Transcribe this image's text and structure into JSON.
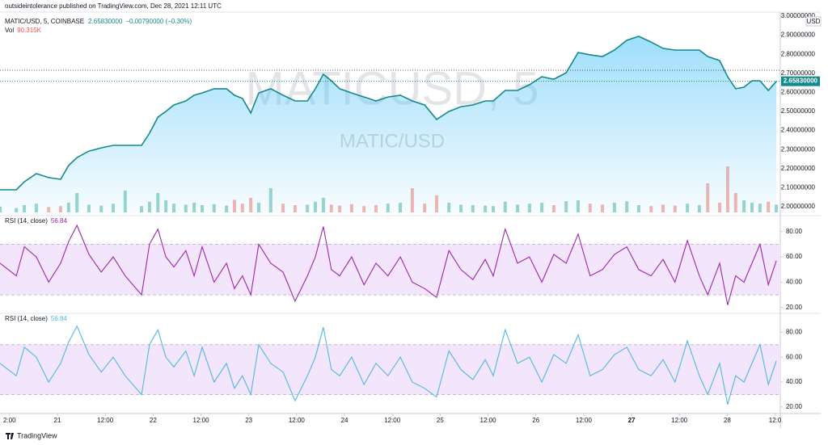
{
  "header": "outsideintolerance published on TradingView.com, Dec 28, 2021 12:11 UTC",
  "footer": "TradingView",
  "xaxis": {
    "xlim": [
      9.6,
      205.3
    ],
    "xticks": [
      {
        "value": 12,
        "label": "2:00"
      },
      {
        "value": 24,
        "label": "21"
      },
      {
        "value": 36,
        "label": "12:00"
      },
      {
        "value": 48,
        "label": "22"
      },
      {
        "value": 60,
        "label": "12:00"
      },
      {
        "value": 72,
        "label": "23"
      },
      {
        "value": 84,
        "label": "12:00"
      },
      {
        "value": 96,
        "label": "24"
      },
      {
        "value": 108,
        "label": "12:00"
      },
      {
        "value": 120,
        "label": "25"
      },
      {
        "value": 132,
        "label": "12:00"
      },
      {
        "value": 144,
        "label": "26"
      },
      {
        "value": 156,
        "label": "12:00"
      },
      {
        "value": 168,
        "label": "27",
        "bold": true
      },
      {
        "value": 180,
        "label": "12:00"
      },
      {
        "value": 192,
        "label": "28"
      },
      {
        "value": 204,
        "label": "12:0"
      }
    ]
  },
  "chart_data": [
    {
      "type": "area",
      "symbol": "MATIC/USD, 5, COINBASE",
      "change": "−0.00790000 (−0.30%)",
      "watermark": "MATICUSD, 5",
      "watermark_sub": "MATIC/USD",
      "currency": "USD",
      "last_price": {
        "value": 2.6583,
        "label": "2.65830000"
      },
      "color": "#13898c",
      "fill": "#4fc3f7",
      "ylim": [
        1.962,
        3.021
      ],
      "yticks": [
        {
          "value": 2,
          "label": "2.00000000"
        },
        {
          "value": 2.1,
          "label": "2.10000000"
        },
        {
          "value": 2.2,
          "label": "2.20000000"
        },
        {
          "value": 2.3,
          "label": "2.30000000"
        },
        {
          "value": 2.4,
          "label": "2.40000000"
        },
        {
          "value": 2.5,
          "label": "2.50000000"
        },
        {
          "value": 2.6,
          "label": "2.60000000"
        },
        {
          "value": 2.7,
          "label": "2.70000000"
        },
        {
          "value": 2.8,
          "label": "2.80000000"
        },
        {
          "value": 2.9,
          "label": "2.90000000"
        },
        {
          "value": 3,
          "label": "3.00000000"
        }
      ],
      "x": [
        9.6,
        13.7,
        15.7,
        18.7,
        21.8,
        24.8,
        26.8,
        28.9,
        31.9,
        35.0,
        38.0,
        41.0,
        45.1,
        47.1,
        49.2,
        51.2,
        53.2,
        56.2,
        58.3,
        60.3,
        63.3,
        66.4,
        68.4,
        70.4,
        72.5,
        74.5,
        77.5,
        80.6,
        83.6,
        86.7,
        88.7,
        90.7,
        92.7,
        94.8,
        97.8,
        100.9,
        103.9,
        106.9,
        110.0,
        113.0,
        116.1,
        119.1,
        122.2,
        125.2,
        128.2,
        131.3,
        133.3,
        136.3,
        139.4,
        142.4,
        145.5,
        148.5,
        151.6,
        154.6,
        157.6,
        160.7,
        163.7,
        166.8,
        169.8,
        172.9,
        175.9,
        178.9,
        182.0,
        185.0,
        187.1,
        190.1,
        192.1,
        194.1,
        196.2,
        198.2,
        200.2,
        202.3,
        204.3
      ],
      "values": [
        2.089,
        2.089,
        2.131,
        2.174,
        2.153,
        2.144,
        2.216,
        2.258,
        2.292,
        2.309,
        2.322,
        2.322,
        2.322,
        2.386,
        2.47,
        2.5,
        2.534,
        2.555,
        2.585,
        2.597,
        2.619,
        2.619,
        2.585,
        2.568,
        2.492,
        2.597,
        2.619,
        2.585,
        2.555,
        2.555,
        2.619,
        2.695,
        2.661,
        2.619,
        2.597,
        2.576,
        2.555,
        2.576,
        2.585,
        2.555,
        2.534,
        2.458,
        2.5,
        2.525,
        2.534,
        2.555,
        2.555,
        2.61,
        2.61,
        2.64,
        2.682,
        2.669,
        2.703,
        2.809,
        2.797,
        2.788,
        2.822,
        2.873,
        2.894,
        2.864,
        2.831,
        2.822,
        2.822,
        2.822,
        2.788,
        2.767,
        2.682,
        2.619,
        2.627,
        2.661,
        2.661,
        2.61,
        2.658
      ],
      "high_line": 2.716,
      "volume_label": "Vol",
      "volume_value": "90.315K",
      "volume_ylim": [
        0,
        1000
      ],
      "volume_up": "#7fc9c0",
      "volume_down": "#f4a09a",
      "volume": [
        120,
        90,
        150,
        180,
        110,
        130,
        200,
        400,
        160,
        140,
        180,
        450,
        130,
        220,
        400,
        250,
        180,
        160,
        200,
        150,
        170,
        140,
        260,
        180,
        300,
        200,
        500,
        180,
        150,
        160,
        220,
        300,
        160,
        140,
        170,
        130,
        150,
        180,
        200,
        500,
        180,
        350,
        200,
        160,
        150,
        140,
        130,
        220,
        160,
        180,
        200,
        150,
        230,
        250,
        180,
        160,
        200,
        230,
        150,
        130,
        160,
        140,
        180,
        150,
        600,
        200,
        950,
        400,
        250,
        200,
        180,
        220,
        160
      ]
    },
    {
      "type": "line",
      "title": "RSI (14, close)",
      "value_label": "56.84",
      "color": "#9c27b0",
      "band": [
        30,
        70
      ],
      "band_fill": "#f3e5fb",
      "ylim": [
        16,
        92
      ],
      "yticks": [
        {
          "value": 20,
          "label": "20.00"
        },
        {
          "value": 40,
          "label": "40.00"
        },
        {
          "value": 60,
          "label": "60.00"
        },
        {
          "value": 80,
          "label": "80.00"
        }
      ],
      "x": [
        9.6,
        13.7,
        15.7,
        18.7,
        21.8,
        24.8,
        26.8,
        28.9,
        31.9,
        35.0,
        38.0,
        41.0,
        45.1,
        47.1,
        49.2,
        51.2,
        53.2,
        56.2,
        58.3,
        60.3,
        63.3,
        66.4,
        68.4,
        70.4,
        72.5,
        74.5,
        77.5,
        80.6,
        83.6,
        86.7,
        88.7,
        90.7,
        92.7,
        94.8,
        97.8,
        100.9,
        103.9,
        106.9,
        110.0,
        113.0,
        116.1,
        119.1,
        122.2,
        125.2,
        128.2,
        131.3,
        133.3,
        136.3,
        139.4,
        142.4,
        145.5,
        148.5,
        151.6,
        154.6,
        157.6,
        160.7,
        163.7,
        166.8,
        169.8,
        172.9,
        175.9,
        178.9,
        182.0,
        185.0,
        187.1,
        190.1,
        192.1,
        194.1,
        196.2,
        198.2,
        200.2,
        202.3,
        204.3
      ],
      "values": [
        55,
        45,
        68,
        60,
        40,
        55,
        72,
        85,
        62,
        48,
        60,
        45,
        30,
        70,
        82,
        60,
        52,
        65,
        45,
        68,
        40,
        55,
        35,
        45,
        30,
        70,
        55,
        48,
        25,
        45,
        60,
        84,
        50,
        45,
        60,
        38,
        55,
        45,
        60,
        40,
        35,
        28,
        65,
        50,
        42,
        58,
        45,
        82,
        55,
        60,
        40,
        62,
        55,
        78,
        45,
        50,
        62,
        68,
        50,
        45,
        58,
        40,
        73,
        45,
        30,
        55,
        22,
        45,
        40,
        55,
        70,
        38,
        57
      ]
    },
    {
      "type": "line",
      "title": "RSI (14, close)",
      "value_label": "56.84",
      "color": "#4fb8e6",
      "band": [
        30,
        70
      ],
      "band_fill": "#f3e5fb",
      "ylim": [
        15.4,
        94.5
      ],
      "yticks": [
        {
          "value": 20,
          "label": "20.00"
        },
        {
          "value": 40,
          "label": "40.00"
        },
        {
          "value": 60,
          "label": "60.00"
        },
        {
          "value": 80,
          "label": "80.00"
        }
      ],
      "x": [
        9.6,
        13.7,
        15.7,
        18.7,
        21.8,
        24.8,
        26.8,
        28.9,
        31.9,
        35.0,
        38.0,
        41.0,
        45.1,
        47.1,
        49.2,
        51.2,
        53.2,
        56.2,
        58.3,
        60.3,
        63.3,
        66.4,
        68.4,
        70.4,
        72.5,
        74.5,
        77.5,
        80.6,
        83.6,
        86.7,
        88.7,
        90.7,
        92.7,
        94.8,
        97.8,
        100.9,
        103.9,
        106.9,
        110.0,
        113.0,
        116.1,
        119.1,
        122.2,
        125.2,
        128.2,
        131.3,
        133.3,
        136.3,
        139.4,
        142.4,
        145.5,
        148.5,
        151.6,
        154.6,
        157.6,
        160.7,
        163.7,
        166.8,
        169.8,
        172.9,
        175.9,
        178.9,
        182.0,
        185.0,
        187.1,
        190.1,
        192.1,
        194.1,
        196.2,
        198.2,
        200.2,
        202.3,
        204.3
      ],
      "values": [
        55,
        45,
        68,
        60,
        40,
        55,
        72,
        85,
        62,
        48,
        60,
        45,
        30,
        70,
        82,
        60,
        52,
        65,
        45,
        68,
        40,
        55,
        35,
        45,
        30,
        70,
        55,
        48,
        25,
        45,
        60,
        84,
        50,
        45,
        60,
        38,
        55,
        45,
        60,
        40,
        35,
        28,
        65,
        50,
        42,
        58,
        45,
        82,
        55,
        60,
        40,
        62,
        55,
        78,
        45,
        50,
        62,
        68,
        50,
        45,
        58,
        40,
        73,
        45,
        30,
        55,
        22,
        45,
        40,
        55,
        70,
        38,
        57
      ]
    }
  ]
}
